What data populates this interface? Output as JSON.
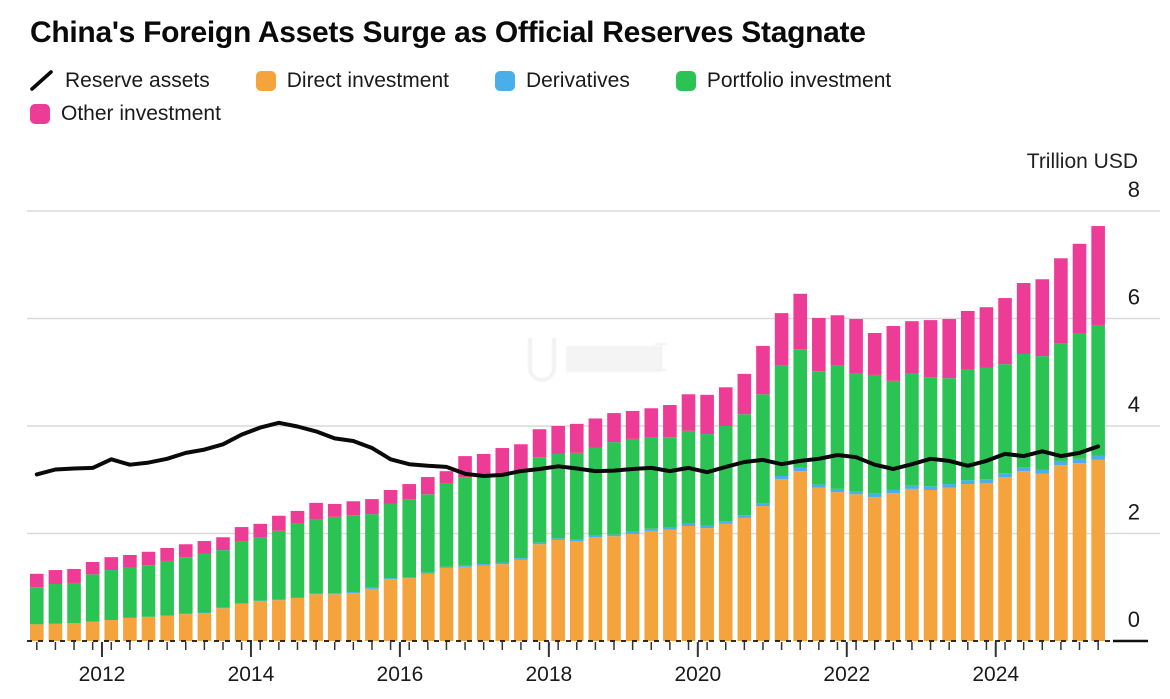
{
  "title": "China's Foreign Assets Surge as Official Reserves Stagnate",
  "axis": {
    "unit_label": "Trillion USD",
    "y_ticks": [
      0,
      2,
      4,
      6,
      8
    ],
    "x_labels": [
      "2012",
      "2014",
      "2016",
      "2018",
      "2020",
      "2022",
      "2024"
    ]
  },
  "legend": [
    {
      "label": "Reserve assets",
      "type": "line",
      "color": "#0a0a0a"
    },
    {
      "label": "Direct investment",
      "type": "swatch",
      "color": "#F5A33C"
    },
    {
      "label": "Derivatives",
      "type": "swatch",
      "color": "#4AAEE8"
    },
    {
      "label": "Portfolio investment",
      "type": "swatch",
      "color": "#2BC454"
    },
    {
      "label": "Other investment",
      "type": "swatch",
      "color": "#ED3C95"
    }
  ],
  "colors": {
    "direct": "#F5A33C",
    "derivatives": "#4AAEE8",
    "portfolio": "#2BC454",
    "other": "#ED3C95",
    "line": "#0a0a0a",
    "gridline": "#d9d9d9",
    "axis_text": "#1a1a1a"
  },
  "chart_data": {
    "type": "bar",
    "subtype": "stacked-bars-with-line",
    "title": "China's Foreign Assets Surge as Official Reserves Stagnate",
    "ylabel": "Trillion USD",
    "ylim": [
      0,
      8
    ],
    "y_ticks": [
      0,
      2,
      4,
      6,
      8
    ],
    "x_year_labels": [
      "2012",
      "2014",
      "2016",
      "2018",
      "2020",
      "2022",
      "2024"
    ],
    "categories": [
      "2011 Q1",
      "2011 Q2",
      "2011 Q3",
      "2011 Q4",
      "2012 Q1",
      "2012 Q2",
      "2012 Q3",
      "2012 Q4",
      "2013 Q1",
      "2013 Q2",
      "2013 Q3",
      "2013 Q4",
      "2014 Q1",
      "2014 Q2",
      "2014 Q3",
      "2014 Q4",
      "2015 Q1",
      "2015 Q2",
      "2015 Q3",
      "2015 Q4",
      "2016 Q1",
      "2016 Q2",
      "2016 Q3",
      "2016 Q4",
      "2017 Q1",
      "2017 Q2",
      "2017 Q3",
      "2017 Q4",
      "2018 Q1",
      "2018 Q2",
      "2018 Q3",
      "2018 Q4",
      "2019 Q1",
      "2019 Q2",
      "2019 Q3",
      "2019 Q4",
      "2020 Q1",
      "2020 Q2",
      "2020 Q3",
      "2020 Q4",
      "2021 Q1",
      "2021 Q2",
      "2021 Q3",
      "2021 Q4",
      "2022 Q1",
      "2022 Q2",
      "2022 Q3",
      "2022 Q4",
      "2023 Q1",
      "2023 Q2",
      "2023 Q3",
      "2023 Q4",
      "2024 Q1",
      "2024 Q2",
      "2024 Q3",
      "2024 Q4",
      "2025 Q1",
      "2025 Q2"
    ],
    "series": [
      {
        "name": "Direct investment",
        "color": "#F5A33C",
        "values": [
          0.31,
          0.32,
          0.33,
          0.36,
          0.39,
          0.43,
          0.45,
          0.47,
          0.5,
          0.52,
          0.61,
          0.69,
          0.74,
          0.76,
          0.8,
          0.87,
          0.87,
          0.89,
          0.97,
          1.15,
          1.17,
          1.25,
          1.36,
          1.38,
          1.4,
          1.43,
          1.51,
          1.8,
          1.88,
          1.86,
          1.93,
          1.95,
          1.99,
          2.05,
          2.07,
          2.14,
          2.1,
          2.18,
          2.29,
          2.51,
          3.01,
          3.16,
          2.85,
          2.77,
          2.73,
          2.68,
          2.75,
          2.83,
          2.81,
          2.85,
          2.92,
          2.94,
          3.05,
          3.16,
          3.11,
          3.27,
          3.31,
          3.37
        ]
      },
      {
        "name": "Derivatives",
        "color": "#4AAEE8",
        "values": [
          0,
          0,
          0,
          0,
          0,
          0,
          0,
          0,
          0.01,
          0.01,
          0.01,
          0.01,
          0.01,
          0.01,
          0.01,
          0.01,
          0.02,
          0.02,
          0.02,
          0.02,
          0.02,
          0.02,
          0.02,
          0.02,
          0.03,
          0.03,
          0.03,
          0.03,
          0.03,
          0.03,
          0.03,
          0.03,
          0.04,
          0.04,
          0.04,
          0.04,
          0.05,
          0.05,
          0.05,
          0.05,
          0.06,
          0.06,
          0.06,
          0.06,
          0.06,
          0.06,
          0.06,
          0.06,
          0.07,
          0.07,
          0.07,
          0.07,
          0.07,
          0.07,
          0.08,
          0.08,
          0.08,
          0.08
        ]
      },
      {
        "name": "Portfolio investment",
        "color": "#2BC454",
        "values": [
          0.69,
          0.74,
          0.75,
          0.88,
          0.93,
          0.93,
          0.96,
          1.02,
          1.05,
          1.09,
          1.07,
          1.16,
          1.17,
          1.28,
          1.37,
          1.39,
          1.42,
          1.43,
          1.37,
          1.38,
          1.45,
          1.46,
          1.56,
          1.65,
          1.64,
          1.65,
          1.62,
          1.59,
          1.57,
          1.61,
          1.64,
          1.72,
          1.73,
          1.69,
          1.68,
          1.73,
          1.7,
          1.77,
          1.88,
          2.03,
          2.05,
          2.21,
          2.11,
          2.29,
          2.18,
          2.21,
          2.03,
          2.08,
          2.03,
          1.97,
          2.07,
          2.07,
          2.03,
          2.11,
          2.11,
          2.18,
          2.34,
          2.43
        ]
      },
      {
        "name": "Other investment",
        "color": "#ED3C95",
        "values": [
          0.25,
          0.26,
          0.26,
          0.23,
          0.24,
          0.24,
          0.25,
          0.24,
          0.24,
          0.24,
          0.24,
          0.26,
          0.26,
          0.28,
          0.24,
          0.3,
          0.24,
          0.26,
          0.28,
          0.26,
          0.28,
          0.32,
          0.22,
          0.39,
          0.41,
          0.48,
          0.5,
          0.52,
          0.52,
          0.54,
          0.54,
          0.54,
          0.52,
          0.55,
          0.6,
          0.68,
          0.73,
          0.72,
          0.75,
          0.9,
          0.98,
          1.03,
          0.99,
          0.94,
          1.02,
          0.78,
          1.02,
          0.98,
          1.06,
          1.1,
          1.08,
          1.13,
          1.23,
          1.32,
          1.43,
          1.59,
          1.66,
          1.84
        ]
      }
    ],
    "line_series": {
      "name": "Reserve assets",
      "color": "#0a0a0a",
      "values": [
        3.1,
        3.19,
        3.21,
        3.22,
        3.38,
        3.28,
        3.32,
        3.39,
        3.5,
        3.56,
        3.66,
        3.84,
        3.97,
        4.06,
        3.99,
        3.9,
        3.77,
        3.72,
        3.59,
        3.38,
        3.29,
        3.26,
        3.24,
        3.11,
        3.07,
        3.09,
        3.16,
        3.2,
        3.25,
        3.21,
        3.16,
        3.17,
        3.2,
        3.22,
        3.16,
        3.22,
        3.14,
        3.24,
        3.33,
        3.37,
        3.29,
        3.35,
        3.39,
        3.46,
        3.42,
        3.28,
        3.2,
        3.29,
        3.39,
        3.35,
        3.26,
        3.35,
        3.48,
        3.44,
        3.53,
        3.44,
        3.5,
        3.62
      ]
    },
    "legend_position": "top",
    "grid": true
  }
}
